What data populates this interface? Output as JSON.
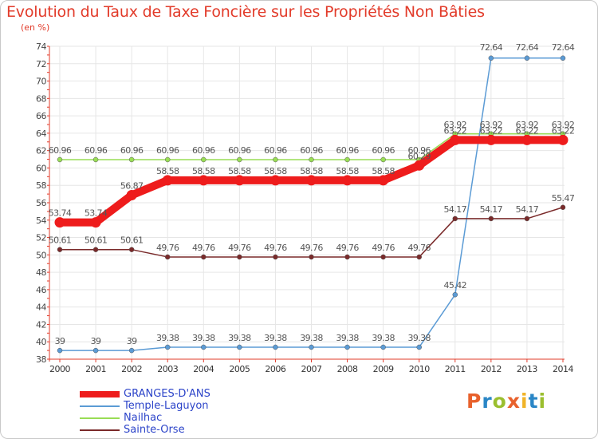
{
  "header": {
    "title": "Evolution du Taux de Taxe Foncière sur les Propriétés Non Bâties",
    "subtitle": "(en %)"
  },
  "logo": {
    "text": "Proxiti",
    "colors": [
      "#e8612c",
      "#2a86c6",
      "#9bbf2f",
      "#e8612c",
      "#f0b429",
      "#2a86c6",
      "#9bbf2f"
    ]
  },
  "colors": {
    "title": "#e23b2a",
    "axis": "#e23b2a",
    "grid": "#e6e6e6",
    "legend_text": "#2c44c9"
  },
  "chart_data": {
    "type": "line",
    "x": [
      "2000",
      "2001",
      "2002",
      "2003",
      "2004",
      "2005",
      "2006",
      "2007",
      "2008",
      "2009",
      "2010",
      "2011",
      "2012",
      "2013",
      "2014"
    ],
    "ylim": [
      38,
      74
    ],
    "yticks": [
      38,
      40,
      42,
      44,
      46,
      48,
      50,
      52,
      54,
      56,
      58,
      60,
      62,
      64,
      66,
      68,
      70,
      72,
      74
    ],
    "grid": true,
    "legend_position": "bottom-left",
    "series": [
      {
        "name": "GRANGES-D'ANS",
        "color": "#ee1c1c",
        "values": [
          53.74,
          53.74,
          56.87,
          58.58,
          58.58,
          58.58,
          58.58,
          58.58,
          58.58,
          58.58,
          60.29,
          63.22,
          63.22,
          63.22,
          63.22
        ],
        "labels": [
          "53.74",
          "53.74",
          "56.87",
          "58.58",
          "58.58",
          "58.58",
          "58.58",
          "58.58",
          "58.58",
          "58.58",
          "60.29",
          "63.22",
          "63.22",
          "63.22",
          "63.22"
        ]
      },
      {
        "name": "Temple-Laguyon",
        "color": "#5b9bd5",
        "values": [
          39,
          39,
          39,
          39.38,
          39.38,
          39.38,
          39.38,
          39.38,
          39.38,
          39.38,
          39.38,
          45.42,
          72.64,
          72.64,
          72.64
        ],
        "labels": [
          "39",
          "39",
          "39",
          "39.38",
          "39.38",
          "39.38",
          "39.38",
          "39.38",
          "39.38",
          "39.38",
          "39.38",
          "45.42",
          "72.64",
          "72.64",
          "72.64"
        ]
      },
      {
        "name": "Nailhac",
        "color": "#99dd55",
        "values": [
          60.96,
          60.96,
          60.96,
          60.96,
          60.96,
          60.96,
          60.96,
          60.96,
          60.96,
          60.96,
          60.96,
          63.92,
          63.92,
          63.92,
          63.92
        ],
        "labels": [
          "60.96",
          "60.96",
          "60.96",
          "60.96",
          "60.96",
          "60.96",
          "60.96",
          "60.96",
          "60.96",
          "60.96",
          "60.96",
          "63.92",
          "63.92",
          "63.92",
          "63.92"
        ]
      },
      {
        "name": "Sainte-Orse",
        "color": "#7a2a2a",
        "values": [
          50.61,
          50.61,
          50.61,
          49.76,
          49.76,
          49.76,
          49.76,
          49.76,
          49.76,
          49.76,
          49.76,
          54.17,
          54.17,
          54.17,
          55.47
        ],
        "labels": [
          "50.61",
          "50.61",
          "50.61",
          "49.76",
          "49.76",
          "49.76",
          "49.76",
          "49.76",
          "49.76",
          "49.76",
          "49.76",
          "54.17",
          "54.17",
          "54.17",
          "55.47"
        ]
      }
    ]
  }
}
